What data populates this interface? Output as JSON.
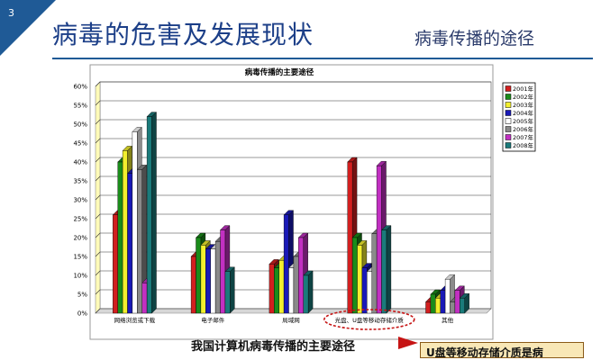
{
  "slide": {
    "number": "3",
    "title": "病毒的危害及发展现状",
    "subtitle": "病毒传播的途径",
    "caption": "我国计算机病毒传播的主要途径",
    "callout": "U盘等移动存储介质是病"
  },
  "chart_data": {
    "type": "bar",
    "title": "病毒传播的主要途径",
    "categories": [
      "网络浏览或下载",
      "电子邮件",
      "局域网",
      "光盘、U盘等移动存储介质",
      "其他"
    ],
    "y_ticks": [
      "0%",
      "5%",
      "10%",
      "15%",
      "20%",
      "25%",
      "30%",
      "35%",
      "40%",
      "45%",
      "50%",
      "55%",
      "60%"
    ],
    "ylim": [
      0,
      60
    ],
    "grid": true,
    "legend_position": "right",
    "highlighted_category": "光盘、U盘等移动存储介质",
    "highlight_color": "#c61414",
    "series": [
      {
        "name": "2001年",
        "color": "#d21f1f",
        "values": [
          26,
          15,
          13,
          40,
          3
        ]
      },
      {
        "name": "2002年",
        "color": "#1a8c1a",
        "values": [
          40,
          20,
          12,
          20,
          5
        ]
      },
      {
        "name": "2003年",
        "color": "#f2ef2e",
        "values": [
          43,
          18,
          14,
          18,
          4
        ]
      },
      {
        "name": "2004年",
        "color": "#1a1ab8",
        "values": [
          37,
          17,
          26,
          12,
          6
        ]
      },
      {
        "name": "2005年",
        "color": "#ffffff",
        "values": [
          48,
          17,
          12,
          11,
          9
        ]
      },
      {
        "name": "2006年",
        "color": "#8a8a8a",
        "values": [
          38,
          19,
          15,
          21,
          3
        ]
      },
      {
        "name": "2007年",
        "color": "#c230c2",
        "values": [
          8,
          22,
          20,
          39,
          6
        ]
      },
      {
        "name": "2008年",
        "color": "#1b7b7b",
        "values": [
          52,
          11,
          10,
          22,
          4
        ]
      }
    ]
  }
}
